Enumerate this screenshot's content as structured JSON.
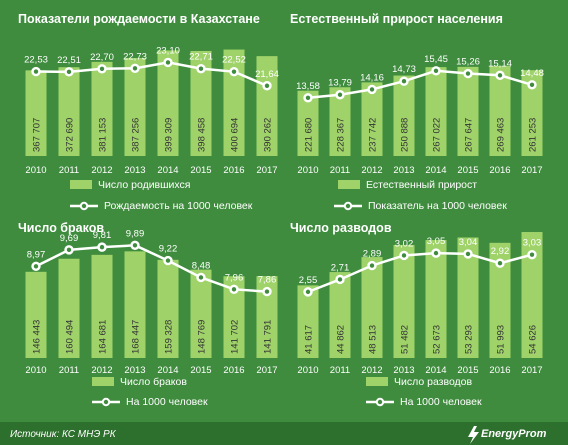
{
  "colors": {
    "background": "#3f8c3e",
    "bar": "#9fd36a",
    "line": "#ffffff",
    "footer": "#2d6f2d"
  },
  "footer": {
    "source": "Источник: КС МНЭ РК",
    "brand": "EnergyProm"
  },
  "chart_data": [
    {
      "type": "bar",
      "title": "Показатели рождаемости в Казахстане",
      "categories": [
        "2010",
        "2011",
        "2012",
        "2013",
        "2014",
        "2015",
        "2016",
        "2017"
      ],
      "bar_values": [
        367707,
        372690,
        381153,
        387256,
        399309,
        398458,
        400694,
        390262
      ],
      "bar_labels": [
        "367 707",
        "372 690",
        "381 153",
        "387 256",
        "399 309",
        "398 458",
        "400 694",
        "390 262"
      ],
      "line_values": [
        22.53,
        22.51,
        22.7,
        22.73,
        23.1,
        22.71,
        22.52,
        21.64
      ],
      "line_labels": [
        "22,53",
        "22,51",
        "22,70",
        "22,73",
        "23,10",
        "22,71",
        "22,52",
        "21,64"
      ],
      "legend": [
        "Число родившихся",
        "Рождаемость на 1000 человек"
      ]
    },
    {
      "type": "bar",
      "title": "Естественный  прирост населения",
      "categories": [
        "2010",
        "2011",
        "2012",
        "2013",
        "2014",
        "2015",
        "2016",
        "2017"
      ],
      "bar_values": [
        221680,
        228367,
        237742,
        250888,
        267022,
        267647,
        269463,
        261253
      ],
      "bar_labels": [
        "221 680",
        "228 367",
        "237 742",
        "250 888",
        "267 022",
        "267 647",
        "269 463",
        "261 253"
      ],
      "line_values": [
        13.58,
        13.79,
        14.16,
        14.73,
        15.45,
        15.26,
        15.14,
        14.48
      ],
      "line_labels": [
        "13,58",
        "13,79",
        "14,16",
        "14,73",
        "15,45",
        "15,26",
        "15,14",
        "14,48"
      ],
      "legend": [
        "Естественный прирост",
        "Показатель на 1000 человек"
      ]
    },
    {
      "type": "bar",
      "title": "Число  браков",
      "categories": [
        "2010",
        "2011",
        "2012",
        "2013",
        "2014",
        "2015",
        "2016",
        "2017"
      ],
      "bar_values": [
        146443,
        160494,
        164681,
        168447,
        159328,
        148769,
        141702,
        141791
      ],
      "bar_labels": [
        "146 443",
        "160 494",
        "164 681",
        "168 447",
        "159 328",
        "148 769",
        "141 702",
        "141 791"
      ],
      "line_values": [
        8.97,
        9.69,
        9.81,
        9.89,
        9.22,
        8.48,
        7.96,
        7.86
      ],
      "line_labels": [
        "8,97",
        "9,69",
        "9,81",
        "9,89",
        "9,22",
        "8,48",
        "7,96",
        "7,86"
      ],
      "legend": [
        "Число браков",
        "На 1000 человек"
      ]
    },
    {
      "type": "bar",
      "title": "Число  разводов",
      "categories": [
        "2010",
        "2011",
        "2012",
        "2013",
        "2014",
        "2015",
        "2016",
        "2017"
      ],
      "bar_values": [
        41617,
        44862,
        48513,
        51482,
        52673,
        53293,
        51993,
        54626
      ],
      "bar_labels": [
        "41 617",
        "44 862",
        "48 513",
        "51 482",
        "52 673",
        "53 293",
        "51 993",
        "54 626"
      ],
      "line_values": [
        2.55,
        2.71,
        2.89,
        3.02,
        3.05,
        3.04,
        2.92,
        3.03
      ],
      "line_labels": [
        "2,55",
        "2,71",
        "2,89",
        "3,02",
        "3,05",
        "3,04",
        "2,92",
        "3,03"
      ],
      "legend": [
        "Число разводов",
        "На 1000 человек"
      ]
    }
  ]
}
